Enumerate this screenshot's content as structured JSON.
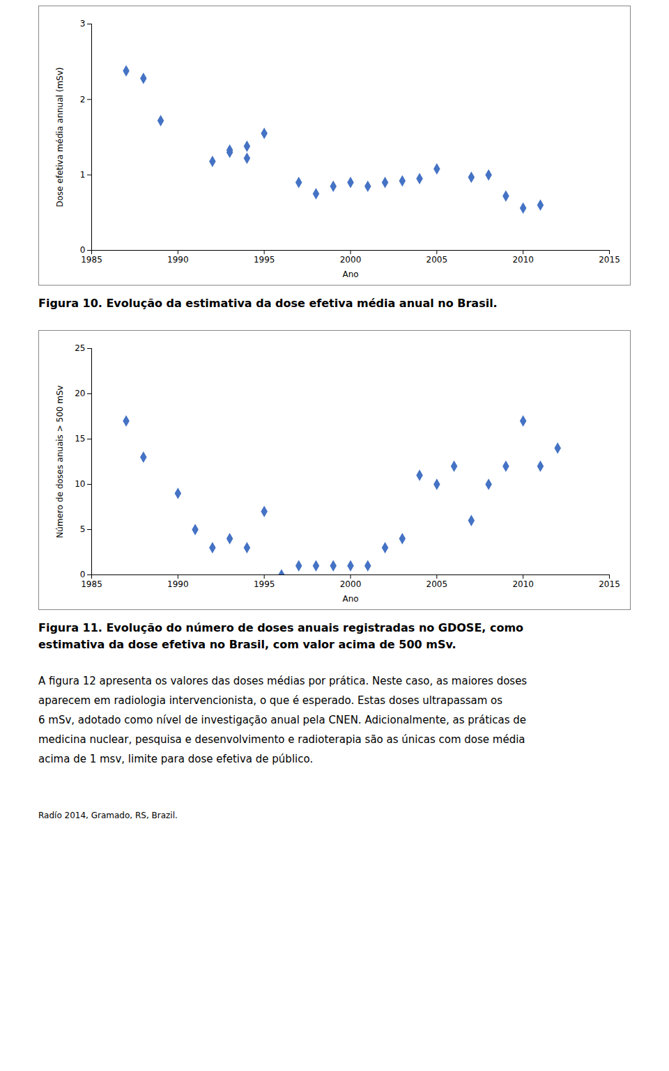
{
  "chart_data": [
    {
      "type": "scatter",
      "title": "Figura 10.  Evolução da estimativa da dose efetiva média anual no Brasil.",
      "x_label": "Ano",
      "y_label": "Dose efetiva média annual (mSv)",
      "x": [
        1987,
        1988,
        1989,
        1992,
        1993,
        1993,
        1994,
        1994,
        1995,
        1997,
        1998,
        1999,
        2000,
        2001,
        2002,
        2003,
        2004,
        2005,
        2007,
        2008,
        2009,
        2010,
        2011
      ],
      "values": [
        2.38,
        2.28,
        1.72,
        1.18,
        1.33,
        1.3,
        1.22,
        1.38,
        1.55,
        0.9,
        0.75,
        0.85,
        0.9,
        0.85,
        0.9,
        0.92,
        0.95,
        1.08,
        0.97,
        1.0,
        0.72,
        0.56,
        0.6
      ],
      "color": "#4472C4",
      "marker": "diamond",
      "xlim": [
        1985,
        2015
      ],
      "xticks": [
        1985,
        1990,
        1995,
        2000,
        2005,
        2010,
        2015
      ],
      "ylim": [
        0,
        3
      ],
      "yticks": [
        0,
        1,
        2,
        3
      ],
      "grid": false
    },
    {
      "type": "scatter",
      "title": "Figura 11.  Evolução do número de doses anuais registradas no GDOSE, como\nestimativa da dose efetiva no Brasil, com valor acima de 500 mSv.",
      "x_label": "Ano",
      "y_label": "Número de doses anuais > 500 mSv",
      "x": [
        1987,
        1988,
        1990,
        1991,
        1992,
        1993,
        1994,
        1995,
        1996,
        1997,
        1998,
        1999,
        2000,
        2001,
        2002,
        2003,
        2004,
        2005,
        2006,
        2007,
        2008,
        2009,
        2010,
        2011,
        2012
      ],
      "values": [
        17,
        13,
        9,
        5,
        3,
        4,
        3,
        7,
        0,
        1,
        1,
        1,
        1,
        1,
        3,
        4,
        11,
        10,
        12,
        6,
        10,
        12,
        17,
        12,
        14
      ],
      "color": "#4472C4",
      "marker": "diamond",
      "xlim": [
        1985,
        2015
      ],
      "xticks": [
        1985,
        1990,
        1995,
        2000,
        2005,
        2010,
        2015
      ],
      "ylim": [
        0,
        25
      ],
      "yticks": [
        0,
        5,
        10,
        15,
        20,
        25
      ],
      "grid": false
    }
  ],
  "body_text": [
    "A figura 12 apresenta os valores das doses médias por prática. Neste caso, as maiores doses",
    "aparecem em radiologia intervencionista, o que é esperado. Estas doses ultrapassam os",
    "6 mSv, adotado como nível de investigação anual pela CNEN. Adicionalmente, as práticas de",
    "medicina nuclear, pesquisa e desenvolvimento e radioterapia são as únicas com dose média",
    "acima de 1 msv, limite para dose efetiva de público."
  ],
  "footer_text": "Radío 2014, Gramado, RS, Brazil."
}
